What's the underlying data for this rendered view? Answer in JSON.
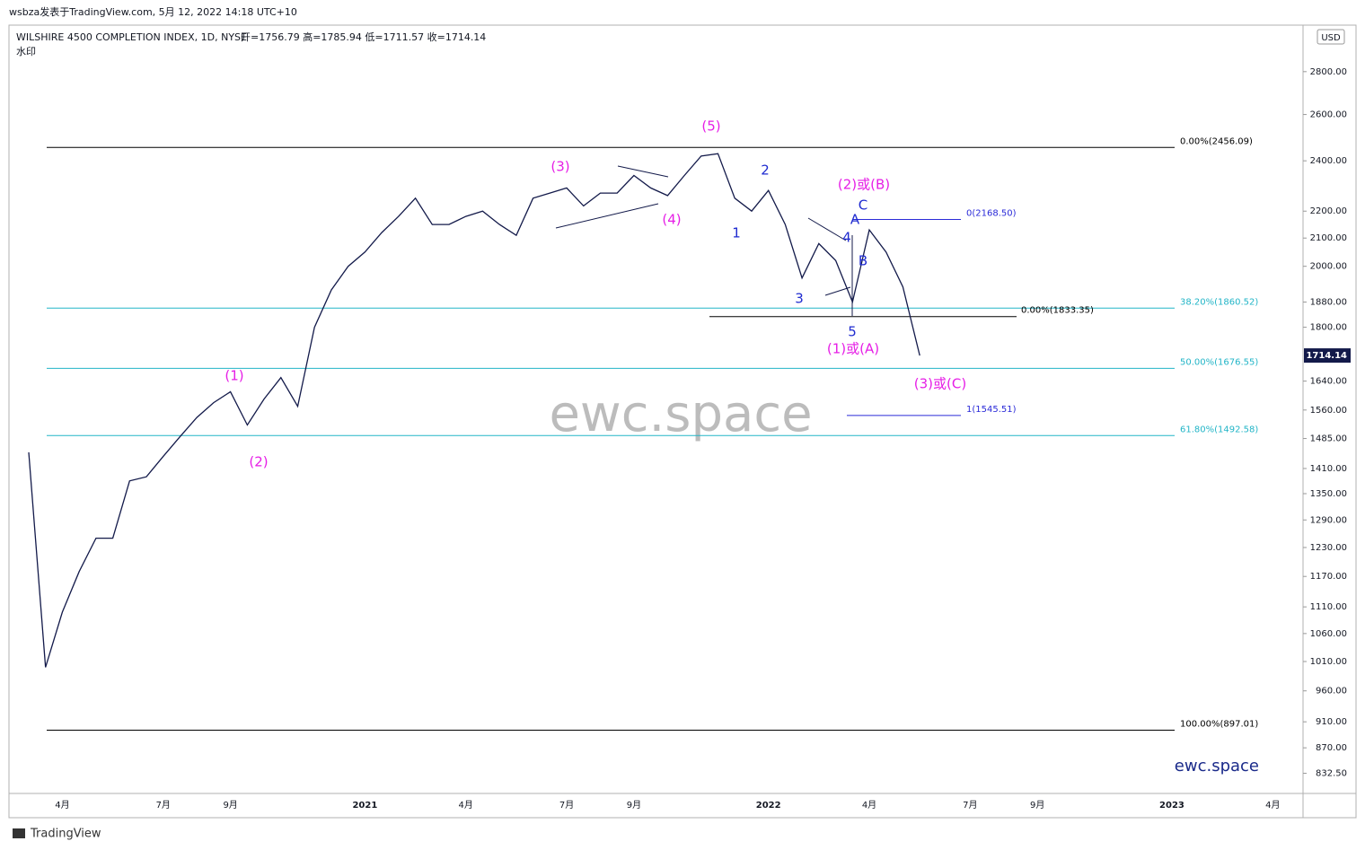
{
  "header": {
    "published": "wsbza发表于TradingView.com, 5月 12, 2022 14:18 UTC+10",
    "footer": "TradingView"
  },
  "chart_data": {
    "type": "line",
    "title": "WILSHIRE 4500 COMPLETION INDEX, 1D, NYSE",
    "subtitle": "开=1756.79  高=1785.94  低=1711.57  收=1714.14",
    "note": "水印",
    "watermark": "ewc.space",
    "brand": "ewc.space",
    "currency": "USD",
    "last_price": 1714.14,
    "log_scale": true,
    "grid": false,
    "categories": [
      null,
      null,
      "4月",
      null,
      null,
      null,
      null,
      null,
      "7月",
      null,
      null,
      null,
      "9月",
      null,
      null,
      null,
      null,
      null,
      null,
      null,
      "2021",
      null,
      null,
      null,
      null,
      null,
      "4月",
      null,
      null,
      null,
      null,
      null,
      "7月",
      null,
      null,
      null,
      "9月",
      null,
      null,
      null,
      null,
      null,
      null,
      null,
      "2022",
      null,
      null,
      null,
      null,
      null,
      "4月",
      null,
      null,
      null,
      null,
      null,
      "7月",
      null,
      null,
      null,
      "9月",
      null,
      null,
      null,
      null,
      null,
      null,
      null,
      "2023",
      null,
      null,
      null,
      null,
      null,
      "4月",
      null
    ],
    "series": [
      {
        "name": "WILSHIRE 4500 COMPLETION INDEX",
        "color": "#131a4a",
        "values": [
          1450,
          1000,
          1100,
          1180,
          1250,
          1250,
          1380,
          1390,
          1440,
          1490,
          1540,
          1580,
          1610,
          1520,
          1590,
          1650,
          1570,
          1800,
          1920,
          2000,
          2050,
          2120,
          2180,
          2250,
          2150,
          2150,
          2180,
          2200,
          2150,
          2110,
          2250,
          2270,
          2290,
          2220,
          2270,
          2270,
          2340,
          2290,
          2260,
          2340,
          2420,
          2430,
          2250,
          2200,
          2280,
          2150,
          1960,
          2080,
          2020,
          1880,
          2130,
          2050,
          1930,
          1714.14,
          null,
          null,
          null,
          null,
          null,
          null,
          null,
          null,
          null,
          null,
          null,
          null,
          null,
          null,
          null,
          null,
          null,
          null,
          null,
          null,
          null,
          null
        ]
      }
    ],
    "ylim": [
      804,
      3025
    ],
    "yticks": [
      {
        "value": 2800,
        "label": "2800.00"
      },
      {
        "value": 2600,
        "label": "2600.00"
      },
      {
        "value": 2400,
        "label": "2400.00"
      },
      {
        "value": 2200,
        "label": "2200.00"
      },
      {
        "value": 2100,
        "label": "2100.00"
      },
      {
        "value": 2000,
        "label": "2000.00"
      },
      {
        "value": 1880,
        "label": "1880.00"
      },
      {
        "value": 1800,
        "label": "1800.00"
      },
      {
        "value": 1640,
        "label": "1640.00"
      },
      {
        "value": 1560,
        "label": "1560.00"
      },
      {
        "value": 1485,
        "label": "1485.00"
      },
      {
        "value": 1410,
        "label": "1410.00"
      },
      {
        "value": 1350,
        "label": "1350.00"
      },
      {
        "value": 1290,
        "label": "1290.00"
      },
      {
        "value": 1230,
        "label": "1230.00"
      },
      {
        "value": 1170,
        "label": "1170.00"
      },
      {
        "value": 1110,
        "label": "1110.00"
      },
      {
        "value": 1060,
        "label": "1060.00"
      },
      {
        "value": 1010,
        "label": "1010.00"
      },
      {
        "value": 960,
        "label": "960.00"
      },
      {
        "value": 910,
        "label": "910.00"
      },
      {
        "value": 870,
        "label": "870.00"
      },
      {
        "value": 832.5,
        "label": "832.50"
      }
    ],
    "levels": [
      {
        "label": "0.00%(2456.09)",
        "value": 2456.09,
        "color": "#000000"
      },
      {
        "label": "38.20%(1860.52)",
        "value": 1860.52,
        "color": "#22b5c7"
      },
      {
        "label": "50.00%(1676.55)",
        "value": 1676.55,
        "color": "#22b5c7"
      },
      {
        "label": "61.80%(1492.58)",
        "value": 1492.58,
        "color": "#22b5c7"
      },
      {
        "label": "100.00%(897.01)",
        "value": 897.01,
        "color": "#000000"
      },
      {
        "label": "0(2168.50)",
        "value": 2168.5,
        "color": "#2a2ad8"
      },
      {
        "label": "0.00%(1833.35)",
        "value": 1833.35,
        "color": "#000000"
      },
      {
        "label": "1(1545.51)",
        "value": 1545.51,
        "color": "#2a2ad8"
      }
    ],
    "annotations": [
      {
        "text": "(1)",
        "color": "#e61ee6"
      },
      {
        "text": "(2)",
        "color": "#e61ee6"
      },
      {
        "text": "(3)",
        "color": "#e61ee6"
      },
      {
        "text": "(4)",
        "color": "#e61ee6"
      },
      {
        "text": "(5)",
        "color": "#e61ee6"
      },
      {
        "text": "1",
        "color": "#1f2bd0"
      },
      {
        "text": "2",
        "color": "#1f2bd0"
      },
      {
        "text": "3",
        "color": "#1f2bd0"
      },
      {
        "text": "4",
        "color": "#1f2bd0"
      },
      {
        "text": "5",
        "color": "#1f2bd0"
      },
      {
        "text": "(1)或(A)",
        "color": "#e61ee6"
      },
      {
        "text": "(2)或(B)",
        "color": "#e61ee6"
      },
      {
        "text": "A",
        "color": "#1f2bd0"
      },
      {
        "text": "B",
        "color": "#1f2bd0"
      },
      {
        "text": "C",
        "color": "#1f2bd0"
      },
      {
        "text": "(3)或(C)",
        "color": "#e61ee6"
      }
    ]
  }
}
